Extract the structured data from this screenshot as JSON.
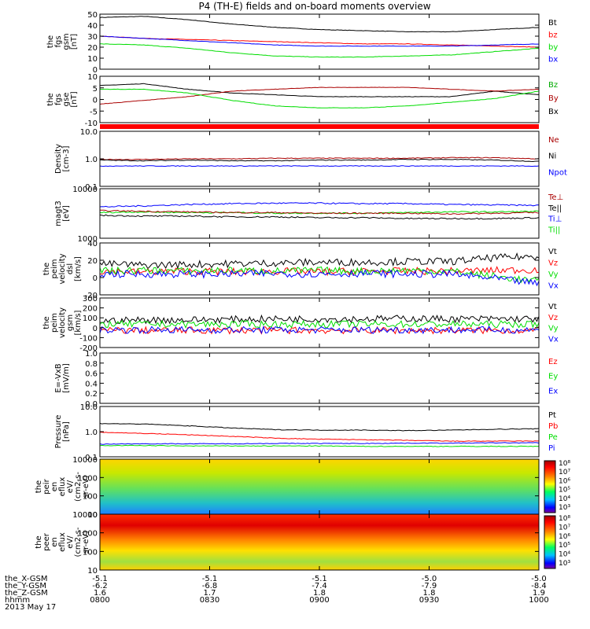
{
  "title": "P4 (TH-E) fields and on-board moments overview",
  "colors": {
    "black": "#000000",
    "red": "#ff0000",
    "darkred": "#aa0000",
    "green": "#00dd00",
    "blue": "#0000ff",
    "brightgreen": "#00c800"
  },
  "chart_data": [
    {
      "id": "fgs_gsm",
      "type": "line",
      "ylabel": [
        "the",
        "fgs",
        "gsm",
        "[nT]"
      ],
      "yticks": [
        "50",
        "40",
        "30",
        "20",
        "10",
        "0"
      ],
      "ylim": [
        0,
        50
      ],
      "legend": [
        {
          "name": "Bt",
          "color": "#000000"
        },
        {
          "name": "bz",
          "color": "#ff0000"
        },
        {
          "name": "by",
          "color": "#00dd00"
        },
        {
          "name": "bx",
          "color": "#0000ff"
        }
      ],
      "series": [
        {
          "name": "Bt",
          "color": "#000000",
          "values": [
            47,
            48,
            45,
            41,
            38,
            36,
            35,
            34,
            34,
            36,
            38
          ]
        },
        {
          "name": "bz",
          "color": "#ff0000",
          "values": [
            30,
            28,
            27,
            26,
            25,
            24,
            23,
            23,
            22,
            21,
            20
          ]
        },
        {
          "name": "by",
          "color": "#00dd00",
          "values": [
            23,
            22,
            19,
            15,
            12,
            11,
            11,
            12,
            13,
            16,
            19
          ]
        },
        {
          "name": "bx",
          "color": "#0000ff",
          "values": [
            30,
            28,
            26,
            24,
            22,
            21,
            21,
            21,
            21,
            22,
            23
          ]
        }
      ]
    },
    {
      "id": "fgs_gse",
      "type": "line",
      "ylabel": [
        "the",
        "fgs",
        "gse",
        "[nT]"
      ],
      "yticks": [
        "10",
        "5",
        "0",
        "-5",
        "-10"
      ],
      "ylim": [
        -15,
        10
      ],
      "legend": [
        {
          "name": "Bz",
          "color": "#00aa00"
        },
        {
          "name": "By",
          "color": "#aa0000"
        },
        {
          "name": "Bx",
          "color": "#000000"
        }
      ],
      "series": [
        {
          "name": "Bx",
          "color": "#000000",
          "values": [
            5,
            6,
            3,
            1,
            0,
            -1,
            -1,
            -1,
            -1,
            2,
            0
          ]
        },
        {
          "name": "By",
          "color": "#aa0000",
          "values": [
            -5,
            -3,
            -1,
            2,
            3,
            4,
            4,
            4,
            3,
            2,
            3
          ]
        },
        {
          "name": "Bz",
          "color": "#00dd00",
          "values": [
            3,
            3,
            1,
            -3,
            -6,
            -7,
            -7,
            -6,
            -4,
            -2,
            2
          ]
        }
      ]
    },
    {
      "id": "density",
      "type": "line",
      "ylabel": [
        "Density",
        "[cm-3]"
      ],
      "yticks": [
        "10.0",
        "1.0",
        "0.1"
      ],
      "log": true,
      "ylim": [
        0.1,
        10
      ],
      "legend": [
        {
          "name": "Ne",
          "color": "#aa0000"
        },
        {
          "name": "Ni",
          "color": "#000000"
        },
        {
          "name": "Npot",
          "color": "#0000ff"
        }
      ],
      "series": [
        {
          "name": "Ne",
          "color": "#aa0000",
          "values": [
            0.95,
            0.95,
            1.0,
            1.0,
            1.05,
            1.05,
            1.05,
            1.05,
            1.1,
            1.1,
            1.0
          ]
        },
        {
          "name": "Ni",
          "color": "#000000",
          "values": [
            0.9,
            0.85,
            0.9,
            0.85,
            0.85,
            0.9,
            0.9,
            0.95,
            0.95,
            0.9,
            0.8
          ]
        },
        {
          "name": "Npot",
          "color": "#0000ff",
          "values": [
            0.55,
            0.55,
            0.55,
            0.55,
            0.55,
            0.55,
            0.55,
            0.55,
            0.55,
            0.55,
            0.55
          ]
        }
      ]
    },
    {
      "id": "temperature",
      "type": "line",
      "ylabel": [
        "magt3",
        "[eV]"
      ],
      "yticks": [
        "10000",
        "1000"
      ],
      "log": true,
      "ylim": [
        1000,
        10000
      ],
      "legend": [
        {
          "name": "Te⊥",
          "color": "#aa0000"
        },
        {
          "name": "Te||",
          "color": "#000000"
        },
        {
          "name": "Ti⊥",
          "color": "#0000ff"
        },
        {
          "name": "Ti||",
          "color": "#00dd00"
        }
      ],
      "series": [
        {
          "name": "Ti⊥",
          "color": "#0000ff",
          "values": [
            4300,
            4500,
            4800,
            5000,
            5100,
            5100,
            5000,
            5000,
            4800,
            4700,
            4600
          ]
        },
        {
          "name": "Ti||",
          "color": "#00dd00",
          "values": [
            3300,
            3400,
            3300,
            3300,
            3200,
            3200,
            3200,
            3300,
            3400,
            3400,
            3500
          ]
        },
        {
          "name": "Te⊥",
          "color": "#aa0000",
          "values": [
            3600,
            3500,
            3400,
            3300,
            3300,
            3200,
            3200,
            3200,
            3100,
            3200,
            3300
          ]
        },
        {
          "name": "Te||",
          "color": "#000000",
          "values": [
            2900,
            2800,
            2800,
            2700,
            2700,
            2600,
            2600,
            2500,
            2500,
            2500,
            2600
          ]
        }
      ]
    },
    {
      "id": "velocity_dsl",
      "type": "line",
      "ylabel": [
        "the",
        "peim",
        "velocity",
        "dsl",
        "[km/s]"
      ],
      "yticks": [
        "40",
        "20",
        "0",
        "-20"
      ],
      "ylim": [
        -30,
        40
      ],
      "legend": [
        {
          "name": "Vt",
          "color": "#000000"
        },
        {
          "name": "Vz",
          "color": "#ff0000"
        },
        {
          "name": "Vy",
          "color": "#00dd00"
        },
        {
          "name": "Vx",
          "color": "#0000ff"
        }
      ],
      "series": [
        {
          "name": "Vt",
          "color": "#000000",
          "values": [
            12,
            10,
            11,
            12,
            13,
            14,
            14,
            15,
            15,
            20,
            22
          ]
        },
        {
          "name": "Vz",
          "color": "#ff0000",
          "values": [
            2,
            1,
            2,
            1,
            2,
            1,
            2,
            2,
            2,
            3,
            4
          ]
        },
        {
          "name": "Vy",
          "color": "#00dd00",
          "values": [
            2,
            3,
            2,
            3,
            2,
            3,
            2,
            3,
            2,
            -5,
            -12
          ]
        },
        {
          "name": "Vx",
          "color": "#0000ff",
          "values": [
            -2,
            -2,
            -2,
            -2,
            -1,
            -2,
            -1,
            -2,
            -2,
            -8,
            -15
          ]
        }
      ]
    },
    {
      "id": "velocity_gsm",
      "type": "line",
      "ylabel": [
        "the",
        "peim",
        "velocity",
        "gsm",
        "[km/s]"
      ],
      "yticks": [
        "300",
        "200",
        "100",
        "0",
        "-100",
        "-200"
      ],
      "ylim": [
        -220,
        300
      ],
      "legend": [
        {
          "name": "Vt",
          "color": "#000000"
        },
        {
          "name": "Vz",
          "color": "#ff0000"
        },
        {
          "name": "Vy",
          "color": "#00dd00"
        },
        {
          "name": "Vx",
          "color": "#0000ff"
        }
      ],
      "series": [
        {
          "name": "Vt",
          "color": "#000000",
          "values": [
            60,
            70,
            70,
            75,
            80,
            80,
            80,
            85,
            80,
            80,
            80
          ]
        },
        {
          "name": "Vz",
          "color": "#ff0000",
          "values": [
            -40,
            -40,
            -40,
            -40,
            -40,
            -40,
            -40,
            -40,
            -40,
            -40,
            -40
          ]
        },
        {
          "name": "Vy",
          "color": "#00dd00",
          "values": [
            25,
            25,
            25,
            25,
            25,
            25,
            25,
            25,
            25,
            25,
            25
          ]
        },
        {
          "name": "Vx",
          "color": "#0000ff",
          "values": [
            -35,
            -35,
            -35,
            -35,
            -35,
            -35,
            -35,
            -35,
            -35,
            -35,
            -35
          ]
        }
      ]
    },
    {
      "id": "efield",
      "type": "line",
      "ylabel": [
        "E=-VxB",
        "[mV/m]"
      ],
      "yticks": [
        "1.0",
        "0.8",
        "0.6",
        "0.4",
        "0.2",
        "0.0"
      ],
      "ylim": [
        0,
        1
      ],
      "legend": [
        {
          "name": "Ez",
          "color": "#ff0000"
        },
        {
          "name": "Ey",
          "color": "#00dd00"
        },
        {
          "name": "Ex",
          "color": "#0000ff"
        }
      ],
      "series": []
    },
    {
      "id": "pressure",
      "type": "line",
      "ylabel": [
        "Pressure",
        "[nPa]"
      ],
      "yticks": [
        "10.0",
        "1.0",
        "0.1"
      ],
      "log": true,
      "ylim": [
        0.1,
        10
      ],
      "legend": [
        {
          "name": "Pt",
          "color": "#000000"
        },
        {
          "name": "Pb",
          "color": "#ff0000"
        },
        {
          "name": "Pe",
          "color": "#00dd00"
        },
        {
          "name": "Pi",
          "color": "#0000ff"
        }
      ],
      "series": [
        {
          "name": "Pt",
          "color": "#000000",
          "values": [
            2.1,
            2.0,
            1.7,
            1.4,
            1.2,
            1.15,
            1.15,
            1.1,
            1.15,
            1.25,
            1.3
          ]
        },
        {
          "name": "Pb",
          "color": "#ff0000",
          "values": [
            0.95,
            0.85,
            0.75,
            0.65,
            0.55,
            0.5,
            0.48,
            0.45,
            0.42,
            0.42,
            0.42
          ]
        },
        {
          "name": "Pe",
          "color": "#00dd00",
          "values": [
            0.28,
            0.28,
            0.27,
            0.27,
            0.27,
            0.27,
            0.26,
            0.26,
            0.26,
            0.26,
            0.26
          ]
        },
        {
          "name": "Pi",
          "color": "#0000ff",
          "values": [
            0.32,
            0.33,
            0.33,
            0.33,
            0.34,
            0.34,
            0.34,
            0.35,
            0.35,
            0.36,
            0.36
          ]
        }
      ]
    },
    {
      "id": "ion_spectrogram",
      "type": "heatmap",
      "ylabel": [
        "the",
        "peir",
        "en",
        "eflux",
        "eV/",
        "(cm2-s-",
        "sr-eV)"
      ],
      "yticks": [
        "10000",
        "1000",
        "100",
        "10"
      ],
      "log": true,
      "ylim": [
        8,
        20000
      ],
      "colorbar_ticks": [
        "10⁸",
        "10⁷",
        "10⁶",
        "10⁵",
        "10⁴",
        "10³"
      ]
    },
    {
      "id": "electron_spectrogram",
      "type": "heatmap",
      "ylabel": [
        "the",
        "peer",
        "en",
        "eflux",
        "eV/",
        "(cm2-s-",
        "sr-eV)"
      ],
      "yticks": [
        "10000",
        "1000",
        "100",
        "10"
      ],
      "log": true,
      "ylim": [
        8,
        20000
      ],
      "colorbar_ticks": [
        "10⁸",
        "10⁷",
        "10⁶",
        "10⁵",
        "10⁴",
        "10³"
      ]
    }
  ],
  "xaxis": {
    "rows": [
      {
        "label": "the_X-GSM",
        "values": [
          "-5.1",
          "-5.1",
          "-5.1",
          "-5.0",
          "-5.0"
        ]
      },
      {
        "label": "the_Y-GSM",
        "values": [
          "-6.2",
          "-6.8",
          "-7.4",
          "-7.9",
          "-8.4"
        ]
      },
      {
        "label": "the_Z-GSM",
        "values": [
          "1.6",
          "1.7",
          "1.8",
          "1.8",
          "1.9"
        ]
      },
      {
        "label": "hhmm",
        "values": [
          "0800",
          "0830",
          "0900",
          "0930",
          "1000"
        ]
      }
    ],
    "date": "2013 May 17"
  }
}
